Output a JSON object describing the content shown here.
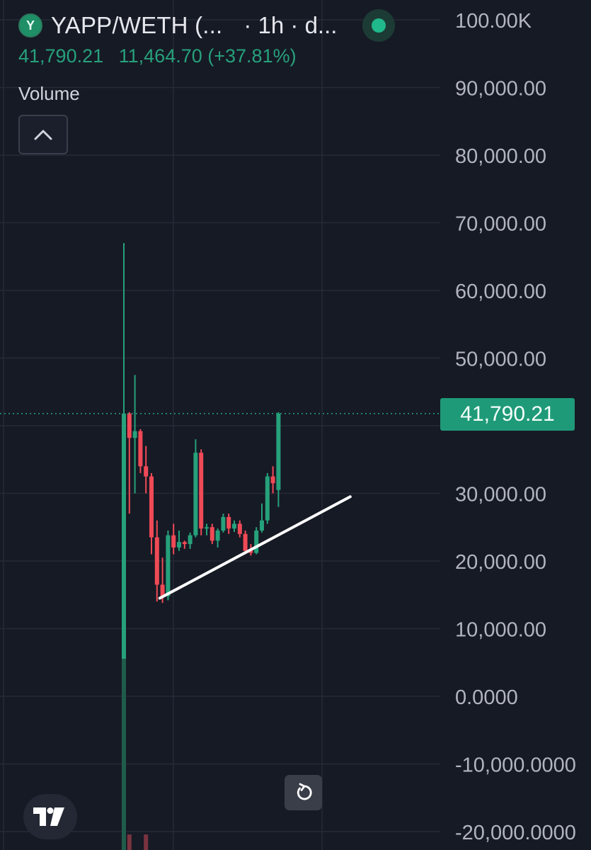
{
  "header": {
    "token_icon_letter": "Y",
    "symbol": "YAPP/WETH (...",
    "interval": "· 1h · d...",
    "current_price": "41,790.21",
    "change": "11,464.70 (+37.81%)",
    "volume_label": "Volume",
    "status_color": "#1fb98c"
  },
  "price_tag": "41,790.21",
  "icons": {
    "collapse": "chevron-up-icon",
    "reset": "reset-rotate-icon",
    "logo": "tradingview-logo-icon"
  },
  "colors": {
    "background": "#161a25",
    "up": "#26a17b",
    "down": "#ef4a56",
    "grid": "#262a36",
    "trendline": "#ffffff"
  },
  "chart_data": {
    "type": "candlestick",
    "y_axis_labels": [
      "100.00K",
      "90,000.00",
      "80,000.00",
      "70,000.00",
      "60,000.00",
      "50,000.00",
      "30,000.00",
      "20,000.00",
      "10,000.00",
      "0.0000",
      "-10,000.0000",
      "-20,000.0000"
    ],
    "ylim": [
      -22000,
      101000
    ],
    "grid": true,
    "last_price": 41790.21,
    "candles": [
      {
        "o": 0,
        "h": 67000,
        "l": -22000,
        "c": 41800
      },
      {
        "o": 41800,
        "h": 42000,
        "l": 27000,
        "c": 38200
      },
      {
        "o": 38200,
        "h": 47500,
        "l": 30000,
        "c": 39200
      },
      {
        "o": 39200,
        "h": 39500,
        "l": 33000,
        "c": 34000
      },
      {
        "o": 34000,
        "h": 37000,
        "l": 30000,
        "c": 32500
      },
      {
        "o": 32500,
        "h": 33000,
        "l": 21000,
        "c": 23500
      },
      {
        "o": 23500,
        "h": 26000,
        "l": 14000,
        "c": 16500
      },
      {
        "o": 16500,
        "h": 20500,
        "l": 13800,
        "c": 14800
      },
      {
        "o": 14800,
        "h": 24500,
        "l": 14200,
        "c": 23800
      },
      {
        "o": 23800,
        "h": 25500,
        "l": 21000,
        "c": 22000
      },
      {
        "o": 22000,
        "h": 24500,
        "l": 21500,
        "c": 22800
      },
      {
        "o": 22800,
        "h": 23000,
        "l": 21800,
        "c": 22500
      },
      {
        "o": 22500,
        "h": 24200,
        "l": 21800,
        "c": 23800
      },
      {
        "o": 23800,
        "h": 38000,
        "l": 23500,
        "c": 36000
      },
      {
        "o": 36000,
        "h": 36500,
        "l": 23800,
        "c": 24800
      },
      {
        "o": 24800,
        "h": 25500,
        "l": 23800,
        "c": 25000
      },
      {
        "o": 25000,
        "h": 25500,
        "l": 22500,
        "c": 23000
      },
      {
        "o": 23000,
        "h": 24800,
        "l": 22000,
        "c": 24500
      },
      {
        "o": 24500,
        "h": 27000,
        "l": 24200,
        "c": 26500
      },
      {
        "o": 26500,
        "h": 27000,
        "l": 24000,
        "c": 24800
      },
      {
        "o": 24800,
        "h": 26000,
        "l": 24300,
        "c": 25500
      },
      {
        "o": 25500,
        "h": 26000,
        "l": 23500,
        "c": 24000
      },
      {
        "o": 24000,
        "h": 24500,
        "l": 21000,
        "c": 21500
      },
      {
        "o": 21500,
        "h": 22500,
        "l": 20800,
        "c": 21200
      },
      {
        "o": 21200,
        "h": 25000,
        "l": 21000,
        "c": 24500
      },
      {
        "o": 24500,
        "h": 28500,
        "l": 24200,
        "c": 26000
      },
      {
        "o": 26000,
        "h": 33000,
        "l": 25500,
        "c": 32500
      },
      {
        "o": 32500,
        "h": 34000,
        "l": 30000,
        "c": 31500
      },
      {
        "o": 30500,
        "h": 42000,
        "l": 28000,
        "c": 41790.21
      }
    ],
    "trendline": [
      {
        "index": 6.5,
        "y": 14500
      },
      {
        "index": 41,
        "y": 29500
      }
    ]
  }
}
